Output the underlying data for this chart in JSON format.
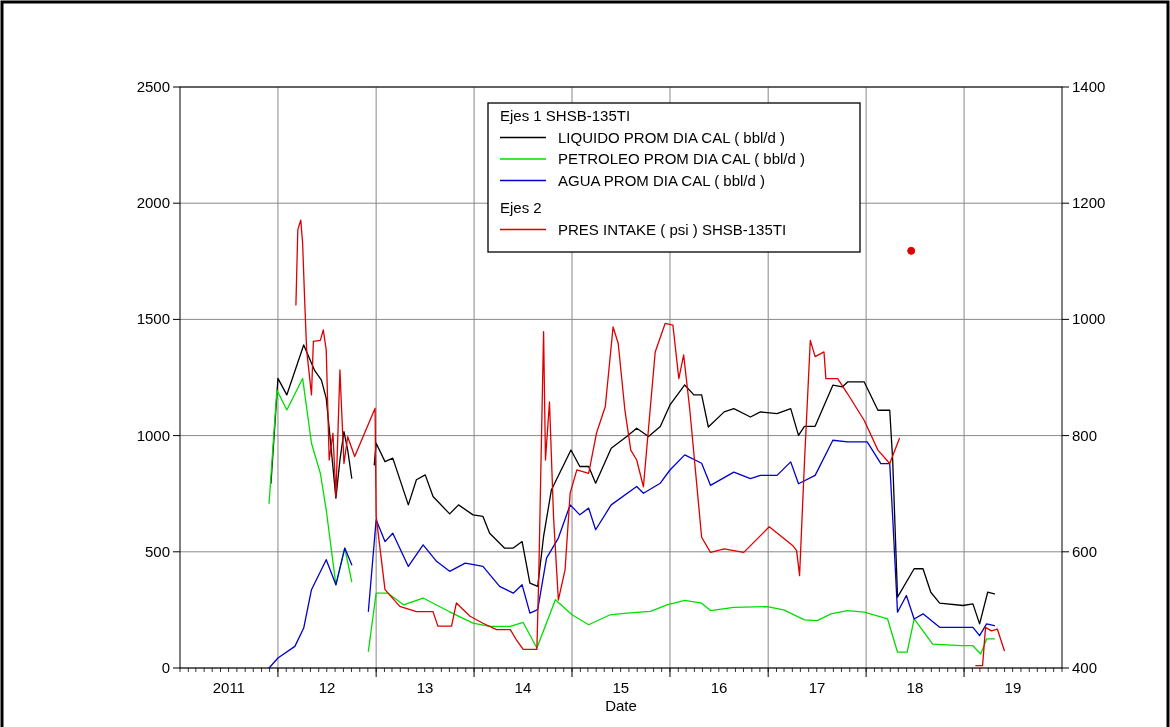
{
  "chart_data": {
    "type": "line",
    "xlabel": "Date",
    "legend_title": "Ejes 1  SHSB-135TI",
    "annotations": [
      "Ejes 2"
    ],
    "xlim": [
      "2011-01-01",
      "2020-01-01"
    ],
    "xticks": [
      {
        "value": "2011-07-02",
        "label": "2011"
      },
      {
        "value": "2012-01-01",
        "label": null
      },
      {
        "value": "2012-07-02",
        "label": "12"
      },
      {
        "value": "2013-01-01",
        "label": null
      },
      {
        "value": "2013-07-02",
        "label": "13"
      },
      {
        "value": "2014-01-01",
        "label": null
      },
      {
        "value": "2014-07-02",
        "label": "14"
      },
      {
        "value": "2015-01-01",
        "label": null
      },
      {
        "value": "2015-07-02",
        "label": "15"
      },
      {
        "value": "2016-01-01",
        "label": null
      },
      {
        "value": "2016-07-02",
        "label": "16"
      },
      {
        "value": "2017-01-01",
        "label": null
      },
      {
        "value": "2017-07-02",
        "label": "17"
      },
      {
        "value": "2018-01-01",
        "label": null
      },
      {
        "value": "2018-07-02",
        "label": "18"
      },
      {
        "value": "2019-01-01",
        "label": null
      },
      {
        "value": "2019-07-02",
        "label": "19"
      }
    ],
    "ylim": [
      0,
      2500
    ],
    "yticks": [
      0,
      500,
      1000,
      1500,
      2000,
      2500
    ],
    "y2lim": [
      400,
      1400
    ],
    "y2ticks": [
      400,
      600,
      800,
      1000,
      1200,
      1400
    ],
    "grid": true,
    "legend": "top",
    "line_style": "solid",
    "series": [
      {
        "name": "LIQUIDO PROM DIA CAL ( bbl/d )",
        "color": "#000000",
        "x": [
          "2011-12-06",
          "2012-01-01",
          "2012-02-03",
          "2012-04-06",
          "2012-05-16",
          "2012-06-11",
          "2012-06-29",
          "2012-07-13",
          "2012-08-04",
          "2012-08-19",
          "2012-09-03",
          "2012-09-17",
          "2012-10-02",
          "2012-11-07",
          "2012-12-25",
          "2013-01-01",
          "2013-02-03",
          "2013-03-04",
          "2013-05-01",
          "2013-05-31",
          "2013-07-03",
          "2013-08-01",
          "2013-10-02",
          "2013-11-04",
          "2013-12-28",
          "2014-02-03",
          "2014-02-28",
          "2014-04-24",
          "2014-05-27",
          "2014-06-29",
          "2014-07-28",
          "2014-08-26",
          "2014-09-17",
          "2014-10-16",
          "2014-12-28",
          "2015-01-30",
          "2015-03-04",
          "2015-03-30",
          "2015-05-27",
          "2015-07-24",
          "2015-08-30",
          "2015-10-13",
          "2015-11-26",
          "2016-01-01",
          "2016-02-25",
          "2016-03-30",
          "2016-04-28",
          "2016-05-23",
          "2016-07-21",
          "2016-08-26",
          "2016-10-27",
          "2016-12-03",
          "2017-02-03",
          "2017-03-26",
          "2017-04-24",
          "2017-05-16",
          "2017-06-25",
          "2017-08-30",
          "2017-10-05",
          "2017-10-24",
          "2017-12-25",
          "2018-02-14",
          "2018-03-30",
          "2018-04-10",
          "2018-04-28",
          "2018-06-29",
          "2018-08-01",
          "2018-08-30",
          "2018-10-02",
          "2018-12-28",
          "2019-02-03",
          "2019-02-28",
          "2019-03-30",
          "2019-04-24"
        ],
        "values": [
          795,
          1246,
          1175,
          1390,
          1282,
          1239,
          1160,
          996,
          731,
          895,
          1017,
          938,
          817,
          null,
          874,
          967,
          888,
          903,
          702,
          810,
          831,
          738,
          663,
          702,
          659,
          652,
          580,
          516,
          516,
          544,
          365,
          351,
          566,
          766,
          938,
          867,
          867,
          795,
          946,
          996,
          1032,
          996,
          1039,
          1132,
          1218,
          1175,
          1175,
          1037,
          1102,
          1116,
          1080,
          1102,
          1095,
          1116,
          1001,
          1040,
          1040,
          1217,
          1210,
          1231,
          1231,
          1109,
          1109,
          894,
          305,
          427,
          427,
          326,
          279,
          269,
          276,
          190,
          326,
          319
        ]
      },
      {
        "name": "PETROLEO PROM DIA CAL ( bbl/d )",
        "color": "#00dd00",
        "x": [
          "2011-11-29",
          "2011-12-28",
          "2012-02-03",
          "2012-04-02",
          "2012-05-05",
          "2012-06-07",
          "2012-06-29",
          "2012-08-04",
          "2012-09-06",
          "2012-10-02",
          "2012-11-07",
          "2012-12-03",
          "2013-01-01",
          "2013-02-14",
          "2013-04-13",
          "2013-06-25",
          "2013-09-28",
          "2013-12-28",
          "2014-02-28",
          "2014-05-16",
          "2014-07-03",
          "2014-08-23",
          "2014-10-31",
          "2015-01-01",
          "2015-03-04",
          "2015-05-23",
          "2015-07-24",
          "2015-10-20",
          "2015-12-21",
          "2016-02-25",
          "2016-04-28",
          "2016-05-31",
          "2016-08-26",
          "2016-12-28",
          "2017-02-28",
          "2017-05-16",
          "2017-07-03",
          "2017-08-23",
          "2017-10-24",
          "2017-12-25",
          "2018-03-22",
          "2018-04-28",
          "2018-06-03",
          "2018-06-29",
          "2018-09-06",
          "2018-12-21",
          "2019-02-03",
          "2019-03-04",
          "2019-03-26",
          "2019-04-24"
        ],
        "values": [
          709,
          1196,
          1110,
          1246,
          967,
          838,
          680,
          358,
          516,
          372,
          null,
          72,
          322,
          322,
          272,
          301,
          244,
          193,
          179,
          179,
          196,
          86,
          294,
          229,
          186,
          229,
          236,
          244,
          272,
          291,
          279,
          247,
          261,
          264,
          250,
          207,
          204,
          233,
          247,
          240,
          211,
          68,
          68,
          211,
          103,
          96,
          96,
          60,
          125,
          125
        ]
      },
      {
        "name": "AGUA  PROM DIA CAL ( bbl/d )",
        "color": "#0000cc",
        "x": [
          "2011-11-29",
          "2012-01-01",
          "2012-03-04",
          "2012-04-06",
          "2012-05-05",
          "2012-06-29",
          "2012-08-04",
          "2012-09-06",
          "2012-10-02",
          "2012-11-07",
          "2012-12-03",
          "2013-01-01",
          "2013-02-03",
          "2013-03-04",
          "2013-05-01",
          "2013-06-25",
          "2013-08-15",
          "2013-10-02",
          "2013-11-29",
          "2014-02-03",
          "2014-04-06",
          "2014-05-27",
          "2014-06-29",
          "2014-07-28",
          "2014-08-26",
          "2014-09-28",
          "2014-11-11",
          "2014-12-25",
          "2015-01-30",
          "2015-03-04",
          "2015-03-30",
          "2015-05-27",
          "2015-08-30",
          "2015-09-24",
          "2015-11-26",
          "2016-01-01",
          "2016-02-25",
          "2016-04-28",
          "2016-05-31",
          "2016-08-26",
          "2016-10-27",
          "2016-12-03",
          "2017-02-03",
          "2017-03-26",
          "2017-04-24",
          "2017-06-25",
          "2017-08-30",
          "2017-10-24",
          "2018-01-05",
          "2018-02-25",
          "2018-03-30",
          "2018-04-10",
          "2018-04-28",
          "2018-05-31",
          "2018-06-29",
          "2018-08-01",
          "2018-10-02",
          "2019-02-03",
          "2019-02-28",
          "2019-03-26",
          "2019-04-24"
        ],
        "values": [
          0,
          43,
          93,
          172,
          337,
          466,
          358,
          516,
          444,
          null,
          244,
          638,
          544,
          580,
          437,
          530,
          458,
          416,
          451,
          437,
          351,
          322,
          358,
          236,
          251,
          473,
          559,
          702,
          659,
          688,
          595,
          702,
          781,
          752,
          795,
          852,
          917,
          881,
          786,
          843,
          815,
          829,
          829,
          887,
          793,
          829,
          980,
          973,
          973,
          879,
          879,
          649,
          240,
          312,
          211,
          233,
          175,
          175,
          139,
          190,
          182
        ]
      },
      {
        "name": "PRES INTAKE ( psi ) SHSB-135TI",
        "color": "#dd0000",
        "axis": "y2",
        "x": [
          "2012-03-08",
          "2012-03-15",
          "2012-03-26",
          "2012-04-02",
          "2012-04-10",
          "2012-04-17",
          "2012-05-05",
          "2012-05-12",
          "2012-06-07",
          "2012-06-18",
          "2012-06-29",
          "2012-07-10",
          "2012-07-24",
          "2012-08-04",
          "2012-08-19",
          "2012-09-03",
          "2012-09-17",
          "2012-10-13",
          "2012-12-28",
          "2013-01-01",
          "2013-02-03",
          "2013-03-30",
          "2013-05-31",
          "2013-08-01",
          "2013-08-19",
          "2013-10-09",
          "2013-10-27",
          "2013-12-17",
          "2014-02-03",
          "2014-03-26",
          "2014-05-16",
          "2014-06-07",
          "2014-07-03",
          "2014-08-23",
          "2014-08-30",
          "2014-09-17",
          "2014-09-24",
          "2014-10-09",
          "2014-10-24",
          "2014-11-11",
          "2014-12-06",
          "2014-12-25",
          "2015-01-19",
          "2015-03-04",
          "2015-04-02",
          "2015-05-05",
          "2015-06-03",
          "2015-06-22",
          "2015-07-17",
          "2015-08-08",
          "2015-08-30",
          "2015-09-24",
          "2015-11-07",
          "2015-12-14",
          "2016-01-12",
          "2016-02-03",
          "2016-02-21",
          "2016-03-15",
          "2016-04-28",
          "2016-05-31",
          "2016-07-21",
          "2016-10-02",
          "2017-01-05",
          "2017-04-02",
          "2017-04-17",
          "2017-04-28",
          "2017-05-16",
          "2017-06-07",
          "2017-06-25",
          "2017-07-28",
          "2017-08-04",
          "2017-09-17",
          "2017-10-24",
          "2017-12-25",
          "2018-02-14",
          "2018-03-30",
          "2018-05-05",
          "2018-05-27",
          "2019-02-14",
          "2019-03-11",
          "2019-03-22",
          "2019-04-13",
          "2019-05-05",
          "2019-05-31"
        ],
        "values": [
          1025,
          1154,
          1171,
          1131,
          1028,
          947,
          870,
          962,
          964,
          982,
          947,
          758,
          804,
          695,
          913,
          752,
          798,
          764,
          847,
          661,
          535,
          506,
          497,
          497,
          472,
          472,
          512,
          489,
          477,
          466,
          466,
          449,
          432,
          432,
          558,
          979,
          758,
          858,
          661,
          517,
          569,
          701,
          741,
          735,
          804,
          850,
          987,
          959,
          844,
          775,
          758,
          712,
          944,
          993,
          990,
          898,
          939,
          844,
          625,
          599,
          605,
          599,
          643,
          611,
          602,
          559,
          752,
          964,
          936,
          944,
          898,
          898,
          872,
          826,
          775,
          752,
          795,
          null,
          404,
          404,
          470,
          464,
          467,
          430
        ]
      },
      {
        "type": "scatter",
        "color": "#dd0000",
        "axis": "y2",
        "marker": "circle",
        "x": [
          "2018-06-18"
        ],
        "values": [
          1118
        ]
      }
    ]
  }
}
